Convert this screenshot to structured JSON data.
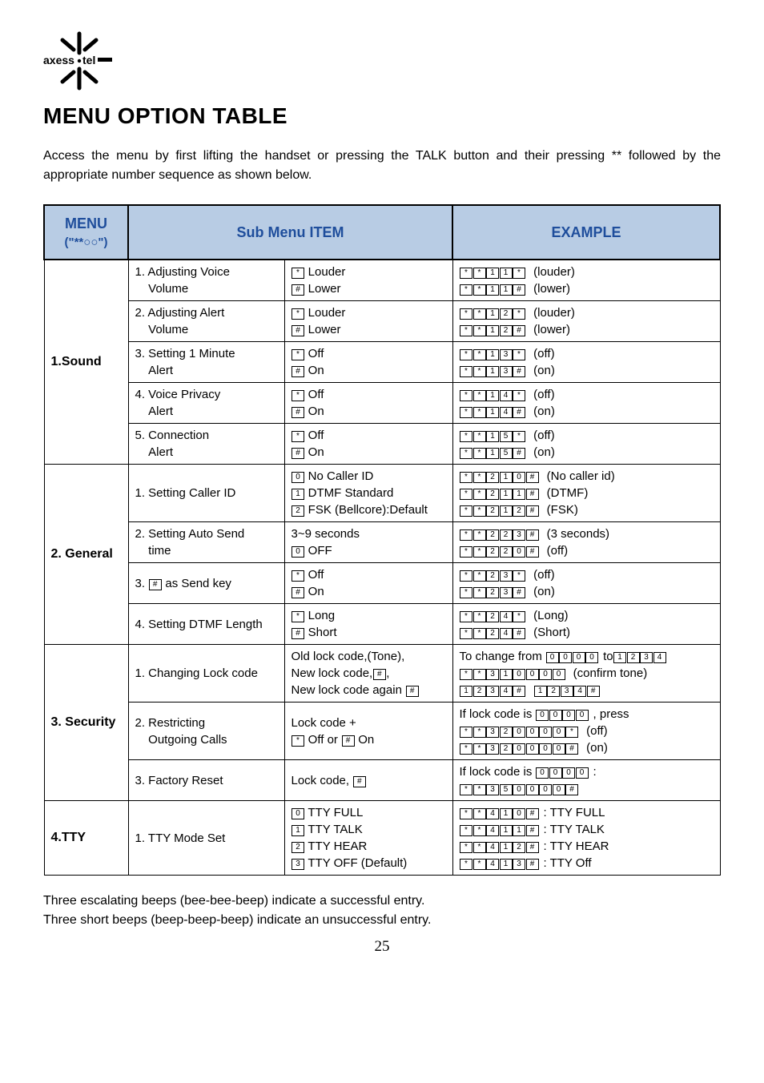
{
  "header": {
    "logo_label": "axess·tel",
    "title": "MENU OPTION TABLE"
  },
  "intro": "Access the menu by first lifting the handset or pressing the TALK button and their pressing ** followed by the appropriate number sequence as shown below.",
  "table_headers": {
    "menu": "MENU",
    "menu_sub": "(\"**○○\")",
    "sub_menu_item": "Sub Menu ITEM",
    "example": "EXAMPLE"
  },
  "colors": {
    "header_bg": "#b8cce4",
    "header_text": "#1f4e9c",
    "border": "#000000"
  },
  "sections": [
    {
      "menu_label": "1.Sound",
      "rows": [
        {
          "sub1_raw": "1. Adjusting Voice\n    Volume",
          "sub2_parts": [
            {
              "key": "*",
              "text": "  Louder"
            },
            {
              "key": "#",
              "text": "  Lower"
            }
          ],
          "example_parts": [
            {
              "seq": [
                "*",
                "*",
                "1",
                "1",
                "*"
              ],
              "text": "  (louder)"
            },
            {
              "seq": [
                "*",
                "*",
                "1",
                "1",
                "#"
              ],
              "text": "  (lower)"
            }
          ]
        },
        {
          "sub1_raw": "2. Adjusting Alert\n    Volume",
          "sub2_parts": [
            {
              "key": "*",
              "text": "  Louder"
            },
            {
              "key": "#",
              "text": "  Lower"
            }
          ],
          "example_parts": [
            {
              "seq": [
                "*",
                "*",
                "1",
                "2",
                "*"
              ],
              "text": "  (louder)"
            },
            {
              "seq": [
                "*",
                "*",
                "1",
                "2",
                "#"
              ],
              "text": "  (lower)"
            }
          ]
        },
        {
          "sub1_raw": "3. Setting 1 Minute\n    Alert",
          "sub2_parts": [
            {
              "key": "*",
              "text": "  Off"
            },
            {
              "key": "#",
              "text": "  On"
            }
          ],
          "example_parts": [
            {
              "seq": [
                "*",
                "*",
                "1",
                "3",
                "*"
              ],
              "text": "  (off)"
            },
            {
              "seq": [
                "*",
                "*",
                "1",
                "3",
                "#"
              ],
              "text": "  (on)"
            }
          ]
        },
        {
          "sub1_raw": "4. Voice Privacy\n    Alert",
          "sub2_parts": [
            {
              "key": "*",
              "text": "  Off"
            },
            {
              "key": "#",
              "text": "  On"
            }
          ],
          "example_parts": [
            {
              "seq": [
                "*",
                "*",
                "1",
                "4",
                "*"
              ],
              "text": "  (off)"
            },
            {
              "seq": [
                "*",
                "*",
                "1",
                "4",
                "#"
              ],
              "text": "  (on)"
            }
          ]
        },
        {
          "sub1_raw": "5. Connection\n    Alert",
          "sub2_parts": [
            {
              "key": "*",
              "text": "  Off"
            },
            {
              "key": "#",
              "text": "  On"
            }
          ],
          "example_parts": [
            {
              "seq": [
                "*",
                "*",
                "1",
                "5",
                "*"
              ],
              "text": "  (off)"
            },
            {
              "seq": [
                "*",
                "*",
                "1",
                "5",
                "#"
              ],
              "text": "  (on)"
            }
          ]
        }
      ]
    },
    {
      "menu_label": "2. General",
      "rows": [
        {
          "sub1_raw": "1. Setting Caller ID",
          "sub2_parts": [
            {
              "key": "0",
              "text": "  No Caller ID"
            },
            {
              "key": "1",
              "text": "  DTMF Standard"
            },
            {
              "key": "2",
              "text": "  FSK (Bellcore):Default"
            }
          ],
          "example_parts": [
            {
              "seq": [
                "*",
                "*",
                "2",
                "1",
                "0",
                "#"
              ],
              "text": "  (No caller id)"
            },
            {
              "seq": [
                "*",
                "*",
                "2",
                "1",
                "1",
                "#"
              ],
              "text": "  (DTMF)"
            },
            {
              "seq": [
                "*",
                "*",
                "2",
                "1",
                "2",
                "#"
              ],
              "text": "  (FSK)"
            }
          ]
        },
        {
          "sub1_raw": "2. Setting Auto Send\n    time",
          "sub2_parts": [
            {
              "text": "3~9 seconds"
            },
            {
              "key": "0",
              "text": "  OFF"
            }
          ],
          "example_parts": [
            {
              "seq": [
                "*",
                "*",
                "2",
                "2",
                "3",
                "#"
              ],
              "text": "  (3 seconds)"
            },
            {
              "seq": [
                "*",
                "*",
                "2",
                "2",
                "0",
                "#"
              ],
              "text": "  (off)"
            }
          ]
        },
        {
          "sub1_special": "as_send_key",
          "sub2_parts": [
            {
              "key": "*",
              "text": "  Off"
            },
            {
              "key": "#",
              "text": "  On"
            }
          ],
          "example_parts": [
            {
              "seq": [
                "*",
                "*",
                "2",
                "3",
                "*"
              ],
              "text": "  (off)"
            },
            {
              "seq": [
                "*",
                "*",
                "2",
                "3",
                "#"
              ],
              "text": "  (on)"
            }
          ]
        },
        {
          "sub1_raw": "4. Setting DTMF Length",
          "sub2_parts": [
            {
              "key": "*",
              "text": "  Long"
            },
            {
              "key": "#",
              "text": "  Short"
            }
          ],
          "example_parts": [
            {
              "seq": [
                "*",
                "*",
                "2",
                "4",
                "*"
              ],
              "text": "  (Long)"
            },
            {
              "seq": [
                "*",
                "*",
                "2",
                "4",
                "#"
              ],
              "text": "  (Short)"
            }
          ]
        }
      ]
    },
    {
      "menu_label": "3. Security",
      "rows": [
        {
          "sub1_raw": "1. Changing Lock code",
          "sub2_special": "changing_lock",
          "example_special": "changing_lock_ex"
        },
        {
          "sub1_raw": "2. Restricting\n    Outgoing Calls",
          "sub2_special": "restricting",
          "example_special": "restricting_ex"
        },
        {
          "sub1_raw": "3. Factory Reset",
          "sub2_special": "factory_reset",
          "example_special": "factory_reset_ex"
        }
      ]
    },
    {
      "menu_label": "4.TTY",
      "rows": [
        {
          "sub1_raw": "1. TTY Mode Set",
          "sub2_parts": [
            {
              "key": "0",
              "text": "  TTY FULL"
            },
            {
              "key": "1",
              "text": "  TTY TALK"
            },
            {
              "key": "2",
              "text": "  TTY HEAR"
            },
            {
              "key": "3",
              "text": "  TTY OFF (Default)"
            }
          ],
          "example_parts": [
            {
              "seq": [
                "*",
                "*",
                "4",
                "1",
                "0",
                "#"
              ],
              "text": ": TTY FULL"
            },
            {
              "seq": [
                "*",
                "*",
                "4",
                "1",
                "1",
                "#"
              ],
              "text": ": TTY TALK"
            },
            {
              "seq": [
                "*",
                "*",
                "4",
                "1",
                "2",
                "#"
              ],
              "text": ": TTY HEAR"
            },
            {
              "seq": [
                "*",
                "*",
                "4",
                "1",
                "3",
                "#"
              ],
              "text": ": TTY Off"
            }
          ]
        }
      ]
    }
  ],
  "footer_lines": [
    "Three escalating beeps (bee-bee-beep) indicate a successful entry.",
    "Three short beeps (beep-beep-beep) indicate an unsuccessful entry."
  ],
  "page_number": "25"
}
